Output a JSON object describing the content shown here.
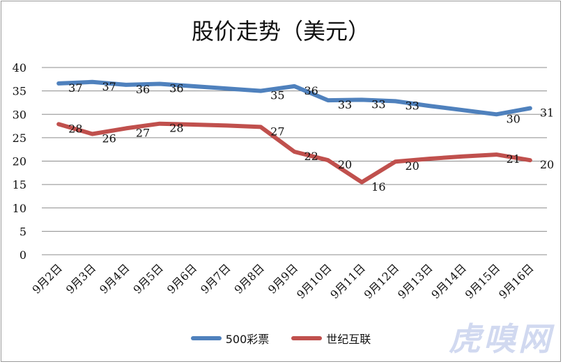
{
  "chart_data": {
    "type": "line",
    "title": "股价走势（美元）",
    "categories": [
      "9月2日",
      "9月3日",
      "9月4日",
      "9月5日",
      "9月6日",
      "9月7日",
      "9月8日",
      "9月9日",
      "9月10日",
      "9月11日",
      "9月12日",
      "9月13日",
      "9月14日",
      "9月15日",
      "9月16日"
    ],
    "ylim": [
      0,
      40
    ],
    "yticks": [
      0,
      5,
      10,
      15,
      20,
      25,
      30,
      35,
      40
    ],
    "grid": true,
    "legend_position": "bottom",
    "series": [
      {
        "name": "500彩票",
        "color": "#4f81bd",
        "values": [
          36.6,
          36.9,
          36.3,
          36.5,
          36.0,
          35.5,
          35.0,
          36.0,
          33.0,
          33.1,
          32.8,
          31.8,
          30.9,
          30.0,
          31.3
        ],
        "labels": [
          "37",
          "37",
          "36",
          "36",
          "",
          "",
          "35",
          "36",
          "33",
          "33",
          "33",
          "",
          "",
          "30",
          "31"
        ]
      },
      {
        "name": "世纪互联",
        "color": "#c0504d",
        "values": [
          27.9,
          25.8,
          27.0,
          28.0,
          27.8,
          27.6,
          27.3,
          22.0,
          20.2,
          15.5,
          19.9,
          20.5,
          21.0,
          21.4,
          20.2
        ],
        "labels": [
          "28",
          "26",
          "27",
          "28",
          "",
          "",
          "27",
          "22",
          "20",
          "16",
          "20",
          "",
          "",
          "21",
          "20"
        ]
      }
    ]
  },
  "watermark": "虎嗅网"
}
